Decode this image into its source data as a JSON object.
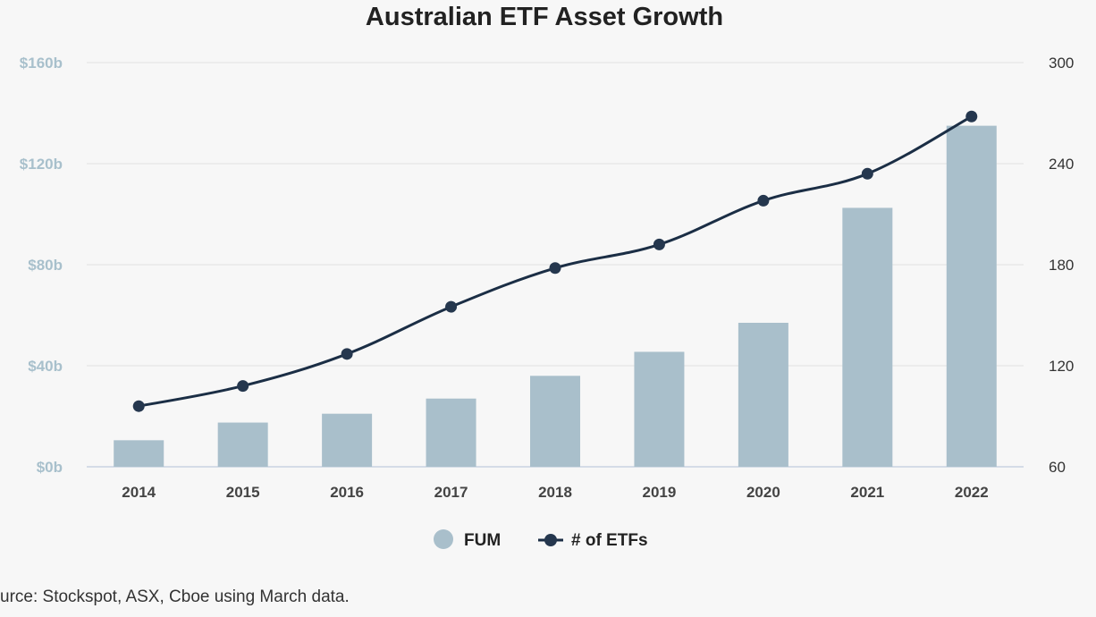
{
  "chart_data": {
    "type": "bar",
    "title": "Australian ETF Asset Growth",
    "categories": [
      "2014",
      "2015",
      "2016",
      "2017",
      "2018",
      "2019",
      "2020",
      "2021",
      "2022"
    ],
    "series": [
      {
        "name": "FUM",
        "type": "bar",
        "axis": "left",
        "color": "#a9bfcb",
        "values": [
          10.5,
          17.5,
          21,
          27,
          36,
          45.5,
          57,
          102.5,
          135
        ]
      },
      {
        "name": "# of ETFs",
        "type": "line",
        "axis": "right",
        "color": "#1b2e45",
        "values": [
          96,
          108,
          127,
          155,
          178,
          192,
          218,
          234,
          268
        ]
      }
    ],
    "left_axis": {
      "ylim": [
        0,
        160
      ],
      "ticks": [
        0,
        40,
        80,
        120,
        160
      ],
      "tick_labels": [
        "$0b",
        "$40b",
        "$80b",
        "$120b",
        "$160b"
      ],
      "color": "#a8c0cc"
    },
    "right_axis": {
      "ylim": [
        60,
        300
      ],
      "ticks": [
        60,
        120,
        180,
        240,
        300
      ],
      "tick_labels": [
        "60",
        "120",
        "180",
        "240",
        "300"
      ]
    },
    "grid": true,
    "legend": "bottom-center",
    "source": "urce: Stockspot, ASX, Cboe using March data."
  }
}
